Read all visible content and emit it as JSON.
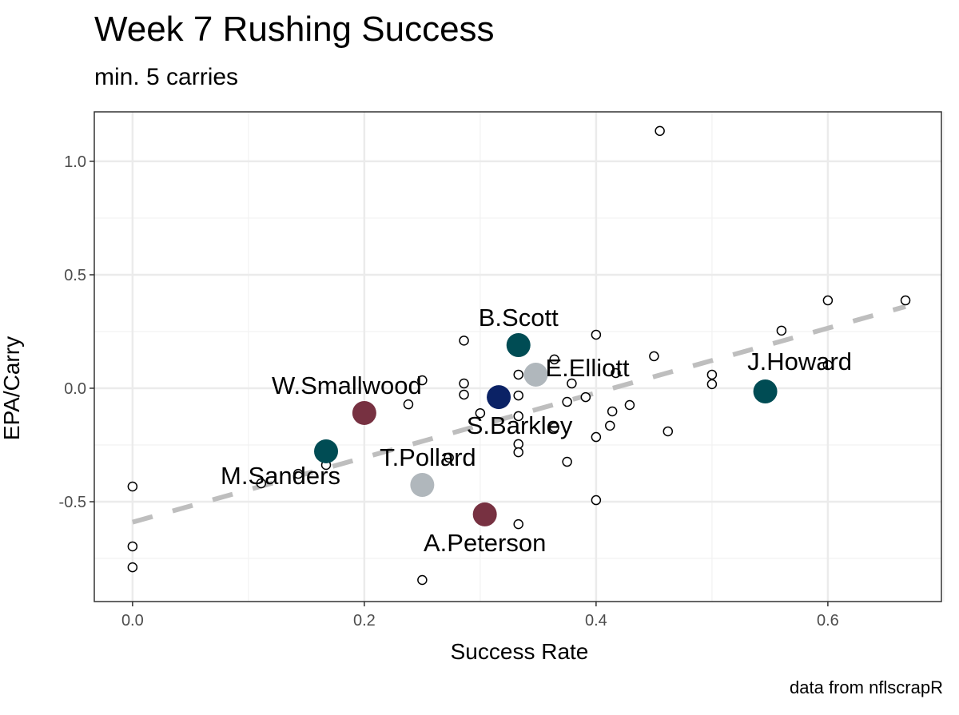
{
  "chart_data": {
    "type": "scatter",
    "title": "Week 7 Rushing Success",
    "subtitle": "min. 5 carries",
    "caption": "data from nflscrapR",
    "xlabel": "Success Rate",
    "ylabel": "EPA/Carry",
    "xlim": [
      -0.033,
      0.698
    ],
    "ylim": [
      -0.94,
      1.218
    ],
    "xticks": [
      0.0,
      0.2,
      0.4,
      0.6
    ],
    "xtick_labels": [
      "0.0",
      "0.2",
      "0.4",
      "0.6"
    ],
    "yticks": [
      1.0,
      0.5,
      0.0,
      -0.5
    ],
    "ytick_labels": [
      "1.0",
      "0.5",
      "0.0",
      "-0.5"
    ],
    "grid": true,
    "trend": {
      "x": [
        0,
        0.667
      ],
      "y": [
        -0.59,
        0.36
      ],
      "color": "#BEBEBE",
      "style": "dashed"
    },
    "points": [
      [
        0.455,
        1.134
      ],
      [
        0.6,
        0.387
      ],
      [
        0.667,
        0.387
      ],
      [
        0.56,
        0.254
      ],
      [
        0.4,
        0.236
      ],
      [
        0.286,
        0.21
      ],
      [
        0.45,
        0.141
      ],
      [
        0.6,
        0.102
      ],
      [
        0.5,
        0.06
      ],
      [
        0.5,
        0.018
      ],
      [
        0.364,
        0.127
      ],
      [
        0.417,
        0.067
      ],
      [
        0.25,
        0.035
      ],
      [
        0.286,
        0.021
      ],
      [
        0.286,
        -0.028
      ],
      [
        0.333,
        0.06
      ],
      [
        0.379,
        0.021
      ],
      [
        0.391,
        -0.039
      ],
      [
        0.375,
        -0.06
      ],
      [
        0.333,
        -0.032
      ],
      [
        0.238,
        -0.071
      ],
      [
        0.3,
        -0.11
      ],
      [
        0.414,
        -0.102
      ],
      [
        0.429,
        -0.074
      ],
      [
        0.412,
        -0.165
      ],
      [
        0.333,
        -0.123
      ],
      [
        0.364,
        -0.172
      ],
      [
        0.4,
        -0.215
      ],
      [
        0.462,
        -0.19
      ],
      [
        0.333,
        -0.246
      ],
      [
        0.333,
        -0.282
      ],
      [
        0.375,
        -0.324
      ],
      [
        0.273,
        -0.306
      ],
      [
        0.4,
        -0.493
      ],
      [
        0.333,
        -0.599
      ],
      [
        0.25,
        -0.845
      ],
      [
        0,
        -0.433
      ],
      [
        0,
        -0.697
      ],
      [
        0,
        -0.789
      ],
      [
        0.111,
        -0.419
      ],
      [
        0.143,
        -0.377
      ],
      [
        0.167,
        -0.338
      ]
    ],
    "highlighted": [
      {
        "name": "B.Scott",
        "x": 0.333,
        "y": 0.19,
        "color": "#004C54",
        "label_pos": "above"
      },
      {
        "name": "E.Elliott",
        "x": 0.348,
        "y": 0.06,
        "color": "#B0B7BC",
        "label_pos": "right"
      },
      {
        "name": "S.Barkley",
        "x": 0.316,
        "y": -0.039,
        "color": "#0B2265",
        "label_pos": "below"
      },
      {
        "name": "J.Howard",
        "x": 0.546,
        "y": -0.014,
        "color": "#004C54",
        "label_pos": "above"
      },
      {
        "name": "W.Smallwood",
        "x": 0.2,
        "y": -0.109,
        "color": "#773141",
        "label_pos": "above"
      },
      {
        "name": "M.Sanders",
        "x": 0.167,
        "y": -0.278,
        "color": "#004C54",
        "label_pos": "below"
      },
      {
        "name": "T.Pollard",
        "x": 0.25,
        "y": -0.426,
        "color": "#B0B7BC",
        "label_pos": "above"
      },
      {
        "name": "A.Peterson",
        "x": 0.304,
        "y": -0.556,
        "color": "#773141",
        "label_pos": "below"
      }
    ]
  }
}
